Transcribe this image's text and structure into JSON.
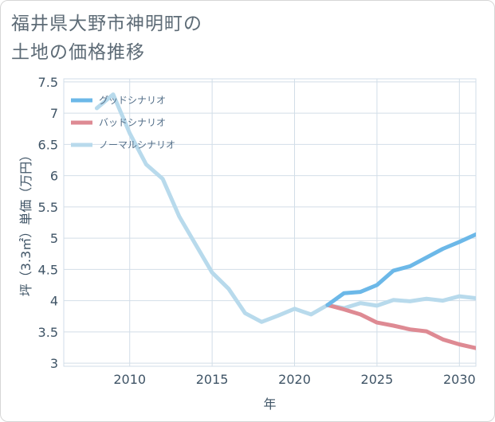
{
  "title": {
    "line1": "福井県大野市神明町の",
    "line2": "土地の価格推移"
  },
  "colors": {
    "good": "#6cb8e8",
    "bad": "#de8a93",
    "normal": "#b8daec",
    "grid": "#d2dee8",
    "axis": "#3f5466"
  },
  "chart_data": {
    "type": "line",
    "xlabel": "年",
    "ylabel": "坪（3.3㎡）単価（万円）",
    "xlim": [
      2006,
      2031
    ],
    "ylim": [
      2.95,
      7.55
    ],
    "xticks": [
      2010,
      2015,
      2020,
      2025,
      2030
    ],
    "yticks": [
      3,
      3.5,
      4,
      4.5,
      5,
      5.5,
      6,
      6.5,
      7,
      7.5
    ],
    "grid": true,
    "legend": "top-left",
    "series": [
      {
        "name": "グッドシナリオ",
        "color": "#6cb8e8",
        "x": [
          2022,
          2023,
          2024,
          2025,
          2026,
          2027,
          2028,
          2029,
          2030,
          2031
        ],
        "y": [
          3.93,
          4.12,
          4.14,
          4.25,
          4.48,
          4.55,
          4.69,
          4.83,
          4.94,
          5.06
        ]
      },
      {
        "name": "バッドシナリオ",
        "color": "#de8a93",
        "x": [
          2022,
          2023,
          2024,
          2025,
          2026,
          2027,
          2028,
          2029,
          2030,
          2031
        ],
        "y": [
          3.93,
          3.86,
          3.78,
          3.65,
          3.6,
          3.54,
          3.51,
          3.38,
          3.3,
          3.24
        ]
      },
      {
        "name": "ノーマルシナリオ",
        "color": "#b8daec",
        "x": [
          2008,
          2009,
          2010,
          2011,
          2012,
          2013,
          2014,
          2015,
          2016,
          2017,
          2018,
          2019,
          2020,
          2021,
          2022,
          2023,
          2024,
          2025,
          2026,
          2027,
          2028,
          2029,
          2030,
          2031
        ],
        "y": [
          7.08,
          7.3,
          6.68,
          6.18,
          5.95,
          5.35,
          4.9,
          4.45,
          4.19,
          3.8,
          3.66,
          3.76,
          3.87,
          3.78,
          3.93,
          3.88,
          3.96,
          3.92,
          4.01,
          3.99,
          4.03,
          4.0,
          4.07,
          4.04
        ]
      }
    ]
  }
}
